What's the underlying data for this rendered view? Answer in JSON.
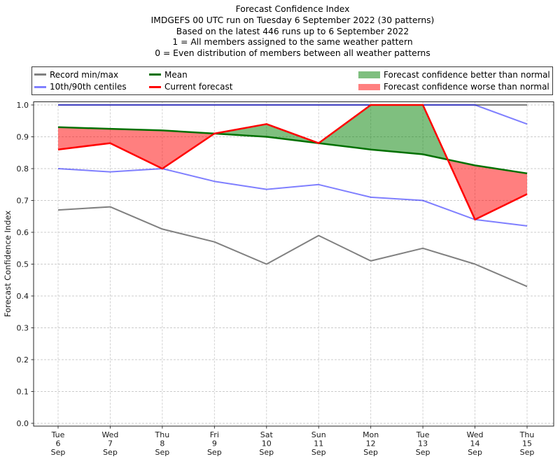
{
  "title": {
    "lines": [
      "Forecast Confidence Index",
      "IMDGEFS 00 UTC run on Tuesday 6 September 2022 (30 patterns)",
      "Based on the latest 446 runs up to 6 September 2022",
      "1 = All members assigned to the same weather pattern",
      "0 = Even distribution of members between all weather patterns"
    ]
  },
  "legend": {
    "items": [
      {
        "label": "Record min/max",
        "type": "line",
        "color": "#808080"
      },
      {
        "label": "10th/90th centiles",
        "type": "line",
        "color": "#8080ff"
      },
      {
        "label": "Mean",
        "type": "line",
        "color": "#007000"
      },
      {
        "label": "Current forecast",
        "type": "line",
        "color": "#ff0000"
      },
      {
        "label": "Forecast confidence better than normal",
        "type": "patch",
        "color": "#7fbf7f"
      },
      {
        "label": "Forecast confidence worse than normal",
        "type": "patch",
        "color": "#ff8080"
      }
    ]
  },
  "chart_data": {
    "type": "line",
    "title": "Forecast Confidence Index",
    "xlabel": "",
    "ylabel": "Forecast Confidence Index",
    "ylim": [
      0.0,
      1.0
    ],
    "y_ticks": [
      0.0,
      0.1,
      0.2,
      0.3,
      0.4,
      0.5,
      0.6,
      0.7,
      0.8,
      0.9,
      1.0
    ],
    "grid": true,
    "legend_position": "top",
    "categories": [
      [
        "Tue",
        "6",
        "Sep"
      ],
      [
        "Wed",
        "7",
        "Sep"
      ],
      [
        "Thu",
        "8",
        "Sep"
      ],
      [
        "Fri",
        "9",
        "Sep"
      ],
      [
        "Sat",
        "10",
        "Sep"
      ],
      [
        "Sun",
        "11",
        "Sep"
      ],
      [
        "Mon",
        "12",
        "Sep"
      ],
      [
        "Tue",
        "13",
        "Sep"
      ],
      [
        "Wed",
        "14",
        "Sep"
      ],
      [
        "Thu",
        "15",
        "Sep"
      ]
    ],
    "series": [
      {
        "name": "Record max",
        "color": "#808080",
        "width": 2,
        "opacity": 1,
        "values": [
          1.0,
          1.0,
          1.0,
          1.0,
          1.0,
          1.0,
          1.0,
          1.0,
          1.0,
          1.0
        ]
      },
      {
        "name": "Record min",
        "color": "#808080",
        "width": 2,
        "opacity": 1,
        "values": [
          0.67,
          0.68,
          0.61,
          0.57,
          0.5,
          0.59,
          0.51,
          0.55,
          0.5,
          0.43
        ]
      },
      {
        "name": "90th centile",
        "color": "#0000ff",
        "width": 2,
        "opacity": 0.5,
        "values": [
          1.0,
          1.0,
          1.0,
          1.0,
          1.0,
          1.0,
          1.0,
          1.0,
          1.0,
          0.94
        ]
      },
      {
        "name": "10th centile",
        "color": "#0000ff",
        "width": 2,
        "opacity": 0.5,
        "values": [
          0.8,
          0.79,
          0.8,
          0.76,
          0.735,
          0.75,
          0.71,
          0.7,
          0.64,
          0.62
        ]
      },
      {
        "name": "Mean",
        "color": "#007000",
        "width": 2.5,
        "opacity": 1,
        "values": [
          0.93,
          0.925,
          0.92,
          0.91,
          0.9,
          0.88,
          0.86,
          0.845,
          0.81,
          0.785
        ]
      },
      {
        "name": "Current forecast",
        "color": "#ff0000",
        "width": 2.5,
        "opacity": 1,
        "values": [
          0.86,
          0.88,
          0.8,
          0.91,
          0.94,
          0.88,
          1.0,
          1.0,
          0.64,
          0.72
        ]
      }
    ],
    "fill_between": {
      "upper": "Current forecast",
      "lower": "Mean",
      "better_color": "#008000",
      "worse_color": "#ff0000",
      "fill_opacity": 0.5,
      "better_label": "Forecast confidence better than normal",
      "worse_label": "Forecast confidence worse than normal"
    }
  }
}
